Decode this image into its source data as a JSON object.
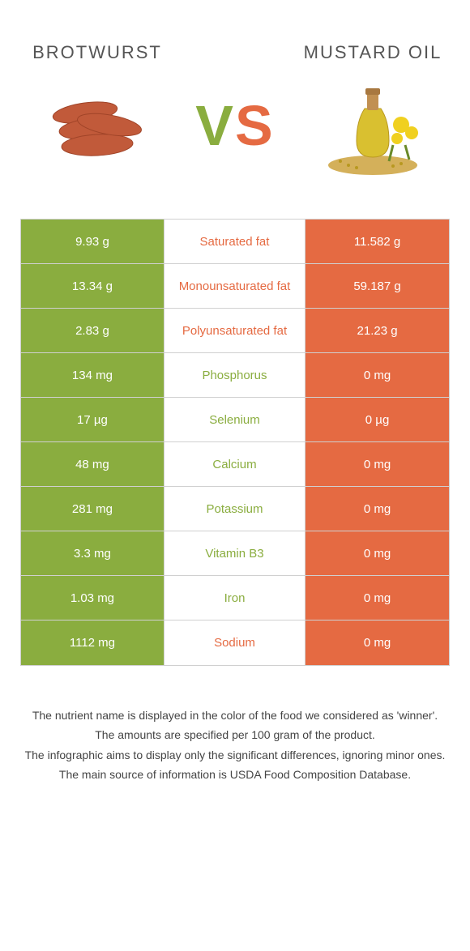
{
  "header": {
    "left_title": "Brotwurst",
    "right_title": "Mustard oil",
    "vs_v": "V",
    "vs_s": "S"
  },
  "colors": {
    "green": "#8aad3f",
    "orange": "#e56a42",
    "border": "#d0d0d0",
    "text": "#555"
  },
  "rows": [
    {
      "left": "9.93 g",
      "label": "Saturated fat",
      "right": "11.582 g",
      "winner": "right"
    },
    {
      "left": "13.34 g",
      "label": "Monounsaturated fat",
      "right": "59.187 g",
      "winner": "right"
    },
    {
      "left": "2.83 g",
      "label": "Polyunsaturated fat",
      "right": "21.23 g",
      "winner": "right"
    },
    {
      "left": "134 mg",
      "label": "Phosphorus",
      "right": "0 mg",
      "winner": "left"
    },
    {
      "left": "17 µg",
      "label": "Selenium",
      "right": "0 µg",
      "winner": "left"
    },
    {
      "left": "48 mg",
      "label": "Calcium",
      "right": "0 mg",
      "winner": "left"
    },
    {
      "left": "281 mg",
      "label": "Potassium",
      "right": "0 mg",
      "winner": "left"
    },
    {
      "left": "3.3 mg",
      "label": "Vitamin B3",
      "right": "0 mg",
      "winner": "left"
    },
    {
      "left": "1.03 mg",
      "label": "Iron",
      "right": "0 mg",
      "winner": "left"
    },
    {
      "left": "1112 mg",
      "label": "Sodium",
      "right": "0 mg",
      "winner": "right"
    }
  ],
  "footnotes": [
    "The nutrient name is displayed in the color of the food we considered as 'winner'.",
    "The amounts are specified per 100 gram of the product.",
    "The infographic aims to display only the significant differences, ignoring minor ones.",
    "The main source of information is USDA Food Composition Database."
  ]
}
